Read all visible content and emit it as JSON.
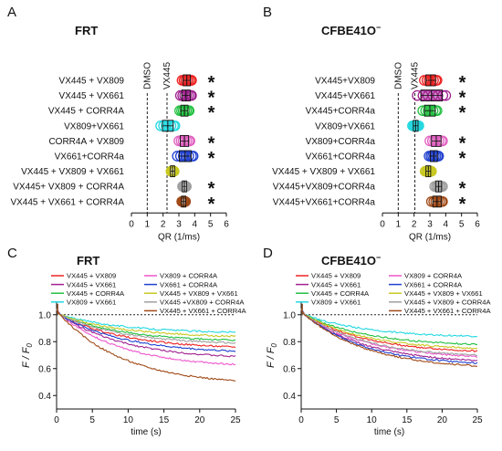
{
  "panels": [
    {
      "letter": "A",
      "title": "FRT"
    },
    {
      "letter": "B",
      "title_main": "CFBE41O",
      "title_sup": "−"
    },
    {
      "letter": "C",
      "title": "FRT"
    },
    {
      "letter": "D",
      "title_main": "CFBE41O",
      "title_sup": "−"
    }
  ],
  "chart_data": [
    {
      "id": "A",
      "type": "scatter",
      "title": "FRT",
      "xlabel": "QR (1/ms)",
      "xlim": [
        0,
        6
      ],
      "xticks": [
        "0",
        "1",
        "2",
        "3",
        "4",
        "5",
        "6"
      ],
      "reference_lines": [
        {
          "label": "DMSO",
          "x": 1.0
        },
        {
          "label": "VX445",
          "x": 2.25
        }
      ],
      "sig_marker": "*",
      "rows": [
        {
          "label": "VX445 + VX809",
          "mean": 3.5,
          "spread": 0.3,
          "color": "#ee2222",
          "sig": true
        },
        {
          "label": "VX445 + VX661",
          "mean": 3.45,
          "spread": 0.35,
          "color": "#a02090",
          "sig": true
        },
        {
          "label": "VX445 + CORR4A",
          "mean": 3.35,
          "spread": 0.3,
          "color": "#22c040",
          "sig": true
        },
        {
          "label": "VX809+VX661",
          "mean": 2.3,
          "spread": 0.45,
          "color": "#22d8e0",
          "sig": false
        },
        {
          "label": "CORR4A + VX809",
          "mean": 3.35,
          "spread": 0.35,
          "color": "#e060c0",
          "sig": true
        },
        {
          "label": "VX661+CORR4a",
          "mean": 3.4,
          "spread": 0.5,
          "color": "#2040d0",
          "sig": true
        },
        {
          "label": "VX445 + VX809 + VX661",
          "mean": 2.6,
          "spread": 0.1,
          "color": "#c8c820",
          "sig": false
        },
        {
          "label": "VX445+ VX809 + CORR4A",
          "mean": 3.35,
          "spread": 0.12,
          "color": "#a0a0a0",
          "sig": true
        },
        {
          "label": "VX445 + VX661 + CORR4A",
          "mean": 3.3,
          "spread": 0.12,
          "color": "#a04a18",
          "sig": true
        }
      ]
    },
    {
      "id": "B",
      "type": "scatter",
      "title": "CFBE41O−",
      "xlabel": "QR (1/ms)",
      "xlim": [
        0,
        6
      ],
      "xticks": [
        "0",
        "1",
        "2",
        "3",
        "4",
        "5",
        "6"
      ],
      "reference_lines": [
        {
          "label": "DMSO",
          "x": 1.0
        },
        {
          "label": "VX445",
          "x": 2.05
        }
      ],
      "sig_marker": "*",
      "rows": [
        {
          "label": "VX445+VX809",
          "mean": 3.05,
          "spread": 0.4,
          "color": "#ee2222",
          "sig": true
        },
        {
          "label": "VX445+VX661",
          "mean": 3.1,
          "spread": 0.9,
          "color": "#a02090",
          "sig": true
        },
        {
          "label": "VX445+CORR4a",
          "mean": 3.0,
          "spread": 0.45,
          "color": "#22c040",
          "sig": true
        },
        {
          "label": "VX809+VX661",
          "mean": 2.1,
          "spread": 0.2,
          "color": "#22d8e0",
          "sig": false
        },
        {
          "label": "VX809+CORR4a",
          "mean": 3.4,
          "spread": 0.4,
          "color": "#e060c0",
          "sig": true
        },
        {
          "label": "VX661+CORR4a",
          "mean": 3.25,
          "spread": 0.3,
          "color": "#2040d0",
          "sig": true
        },
        {
          "label": "VX445 + VX809 + VX661",
          "mean": 2.9,
          "spread": 0.2,
          "color": "#c8c820",
          "sig": false
        },
        {
          "label": "VX445+VX809+CORR4a",
          "mean": 3.55,
          "spread": 0.25,
          "color": "#a0a0a0",
          "sig": true
        },
        {
          "label": "VX445+VX661+CORR4a",
          "mean": 3.45,
          "spread": 0.35,
          "color": "#a04a18",
          "sig": true
        }
      ]
    },
    {
      "id": "C",
      "type": "line",
      "title": "FRT",
      "xlabel": "time  (s)",
      "ylabel_main": "F / F",
      "ylabel_sub": "0",
      "xlim": [
        0,
        25
      ],
      "ylim": [
        0.3,
        1.1
      ],
      "xticks": [
        "0",
        "5",
        "10",
        "15",
        "20",
        "25"
      ],
      "yticks": [
        "0.4",
        "0.6",
        "0.8",
        "1.0"
      ],
      "reference_y": 1.0,
      "series": [
        {
          "name": "VX445 + VX809",
          "color": "#ee2222",
          "end": 0.76
        },
        {
          "name": "VX445 + VX661",
          "color": "#a02090",
          "end": 0.69
        },
        {
          "name": "VX445 + CORR4A",
          "color": "#22c040",
          "end": 0.81
        },
        {
          "name": "VX809 + VX661",
          "color": "#22d8e0",
          "end": 0.87
        },
        {
          "name": "VX809 + CORR4A",
          "color": "#ee55cc",
          "end": 0.63
        },
        {
          "name": "VX661 + CORR4A",
          "color": "#2040d0",
          "end": 0.73
        },
        {
          "name": "VX445 + VX809 + VX661",
          "color": "#c8c820",
          "end": 0.84
        },
        {
          "name": "VX445 +VX809 + CORR4A",
          "color": "#a0a0a0",
          "end": 0.79
        },
        {
          "name": "VX445 + VX661 + CORR4A",
          "color": "#a04a18",
          "end": 0.51
        }
      ]
    },
    {
      "id": "D",
      "type": "line",
      "title": "CFBE41O−",
      "xlabel": "time  (s)",
      "ylabel_main": "F / F",
      "ylabel_sub": "0",
      "xlim": [
        0,
        25
      ],
      "ylim": [
        0.3,
        1.1
      ],
      "xticks": [
        "0",
        "5",
        "10",
        "15",
        "20",
        "25"
      ],
      "yticks": [
        "0.4",
        "0.6",
        "0.8",
        "1.0"
      ],
      "reference_y": 1.0,
      "series": [
        {
          "name": "VX445 + VX809",
          "color": "#ee2222",
          "end": 0.73
        },
        {
          "name": "VX445 + VX661",
          "color": "#a02090",
          "end": 0.66
        },
        {
          "name": "VX445 + CORR4A",
          "color": "#22c040",
          "end": 0.78
        },
        {
          "name": "VX809 + VX661",
          "color": "#22d8e0",
          "end": 0.84
        },
        {
          "name": "VX809 + CORR4A",
          "color": "#ee55cc",
          "end": 0.69
        },
        {
          "name": "VX661 + CORR4A",
          "color": "#2040d0",
          "end": 0.64
        },
        {
          "name": "VX445 + VX809 + VX661",
          "color": "#c8c820",
          "end": 0.75
        },
        {
          "name": "VX445 + VX809 + CORR4A",
          "color": "#a0a0a0",
          "end": 0.7
        },
        {
          "name": "VX445 + VX661 + CORR4A",
          "color": "#a04a18",
          "end": 0.62
        }
      ]
    }
  ]
}
